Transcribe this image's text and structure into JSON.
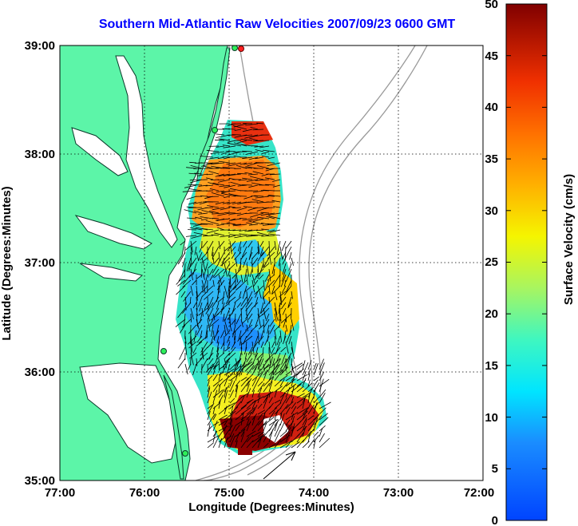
{
  "title": "Southern Mid-Atlantic Raw Velocities 2007/09/23 0600 GMT",
  "x_axis": {
    "label": "Longitude (Degrees:Minutes)",
    "ticks": [
      "77:00",
      "76:00",
      "75:00",
      "74:00",
      "73:00",
      "72:00"
    ]
  },
  "y_axis": {
    "label": "Latitude (Degrees:Minutes)",
    "ticks": [
      "39:00",
      "38:00",
      "37:00",
      "36:00",
      "35:00"
    ]
  },
  "colorbar": {
    "label": "Surface Velocity (cm/s)",
    "ticks": [
      "50",
      "45",
      "40",
      "35",
      "30",
      "25",
      "20",
      "15",
      "10",
      "5",
      "0"
    ],
    "range": [
      0,
      50
    ]
  },
  "colors": {
    "land": "#5cf5a8",
    "water": "#ffffff",
    "bathymetry": "#999999",
    "title": "#0000ff"
  },
  "map_extent": {
    "lon": [
      -77,
      -72
    ],
    "lat": [
      35,
      39
    ]
  },
  "grid": true
}
